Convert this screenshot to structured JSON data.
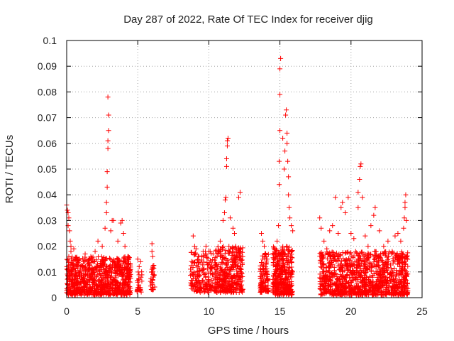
{
  "chart_data": {
    "type": "scatter",
    "title": "Day 287 of 2022, Rate Of TEC Index for receiver djig",
    "xlabel": "GPS time / hours",
    "ylabel": "ROTI / TECUs",
    "xlim": [
      0,
      25
    ],
    "ylim": [
      0,
      0.1
    ],
    "xticks": [
      "0",
      "5",
      "10",
      "15",
      "20",
      "25"
    ],
    "yticks": [
      "0",
      "0.01",
      "0.02",
      "0.03",
      "0.04",
      "0.05",
      "0.06",
      "0.07",
      "0.08",
      "0.09",
      "0.1"
    ],
    "grid": true,
    "marker": "+",
    "color": "#ff0000",
    "series": [
      {
        "points": [
          [
            0.0,
            0.036
          ],
          [
            0.05,
            0.034
          ],
          [
            0.1,
            0.033
          ],
          [
            0.15,
            0.031
          ],
          [
            0.1,
            0.028
          ],
          [
            0.2,
            0.026
          ],
          [
            0.25,
            0.022
          ],
          [
            0.3,
            0.02
          ],
          [
            0.3,
            0.018
          ],
          [
            0.15,
            0.016
          ],
          [
            0.5,
            0.019
          ],
          [
            0.9,
            0.015
          ],
          [
            1.3,
            0.017
          ],
          [
            1.7,
            0.016
          ],
          [
            2.0,
            0.018
          ],
          [
            2.2,
            0.022
          ],
          [
            2.5,
            0.02
          ],
          [
            2.7,
            0.027
          ],
          [
            2.8,
            0.033
          ],
          [
            2.8,
            0.037
          ],
          [
            2.85,
            0.043
          ],
          [
            2.85,
            0.049
          ],
          [
            2.9,
            0.058
          ],
          [
            2.9,
            0.061
          ],
          [
            2.95,
            0.065
          ],
          [
            2.95,
            0.071
          ],
          [
            2.9,
            0.078
          ],
          [
            3.1,
            0.026
          ],
          [
            3.2,
            0.03
          ],
          [
            3.3,
            0.03
          ],
          [
            3.6,
            0.022
          ],
          [
            3.8,
            0.029
          ],
          [
            3.9,
            0.03
          ],
          [
            4.0,
            0.025
          ],
          [
            4.1,
            0.02
          ],
          [
            4.3,
            0.016
          ],
          [
            5.0,
            0.015
          ],
          [
            5.1,
            0.012
          ],
          [
            5.2,
            0.014
          ],
          [
            5.0,
            0.006
          ],
          [
            5.1,
            0.003
          ],
          [
            6.0,
            0.021
          ],
          [
            6.0,
            0.018
          ],
          [
            6.05,
            0.016
          ],
          [
            6.0,
            0.011
          ],
          [
            6.1,
            0.008
          ],
          [
            6.05,
            0.004
          ],
          [
            8.9,
            0.024
          ],
          [
            9.0,
            0.02
          ],
          [
            9.1,
            0.019
          ],
          [
            9.3,
            0.016
          ],
          [
            9.6,
            0.018
          ],
          [
            9.8,
            0.02
          ],
          [
            10.0,
            0.018
          ],
          [
            10.3,
            0.017
          ],
          [
            10.8,
            0.022
          ],
          [
            11.0,
            0.03
          ],
          [
            11.1,
            0.033
          ],
          [
            11.15,
            0.038
          ],
          [
            11.2,
            0.039
          ],
          [
            11.25,
            0.051
          ],
          [
            11.25,
            0.054
          ],
          [
            11.3,
            0.061
          ],
          [
            11.35,
            0.062
          ],
          [
            11.3,
            0.059
          ],
          [
            11.5,
            0.031
          ],
          [
            11.7,
            0.027
          ],
          [
            11.8,
            0.025
          ],
          [
            11.9,
            0.02
          ],
          [
            12.1,
            0.039
          ],
          [
            12.2,
            0.041
          ],
          [
            13.7,
            0.025
          ],
          [
            13.8,
            0.022
          ],
          [
            13.9,
            0.02
          ],
          [
            14.0,
            0.017
          ],
          [
            14.1,
            0.015
          ],
          [
            14.8,
            0.022
          ],
          [
            14.9,
            0.028
          ],
          [
            14.95,
            0.044
          ],
          [
            14.95,
            0.053
          ],
          [
            15.0,
            0.065
          ],
          [
            15.0,
            0.079
          ],
          [
            15.0,
            0.089
          ],
          [
            15.05,
            0.093
          ],
          [
            15.2,
            0.062
          ],
          [
            15.3,
            0.05
          ],
          [
            15.35,
            0.057
          ],
          [
            15.4,
            0.071
          ],
          [
            15.45,
            0.073
          ],
          [
            15.5,
            0.064
          ],
          [
            15.5,
            0.06
          ],
          [
            15.55,
            0.053
          ],
          [
            15.6,
            0.047
          ],
          [
            15.6,
            0.04
          ],
          [
            15.65,
            0.035
          ],
          [
            15.7,
            0.031
          ],
          [
            15.8,
            0.028
          ],
          [
            15.9,
            0.026
          ],
          [
            17.8,
            0.031
          ],
          [
            17.9,
            0.027
          ],
          [
            18.1,
            0.022
          ],
          [
            18.3,
            0.019
          ],
          [
            18.5,
            0.026
          ],
          [
            18.7,
            0.028
          ],
          [
            18.9,
            0.039
          ],
          [
            19.1,
            0.025
          ],
          [
            19.3,
            0.035
          ],
          [
            19.4,
            0.037
          ],
          [
            19.6,
            0.033
          ],
          [
            19.8,
            0.039
          ],
          [
            20.0,
            0.025
          ],
          [
            20.2,
            0.023
          ],
          [
            20.5,
            0.035
          ],
          [
            20.5,
            0.041
          ],
          [
            20.6,
            0.046
          ],
          [
            20.65,
            0.051
          ],
          [
            20.7,
            0.052
          ],
          [
            20.8,
            0.039
          ],
          [
            21.0,
            0.024
          ],
          [
            21.2,
            0.02
          ],
          [
            21.4,
            0.028
          ],
          [
            21.6,
            0.032
          ],
          [
            21.7,
            0.035
          ],
          [
            22.0,
            0.026
          ],
          [
            22.3,
            0.02
          ],
          [
            22.6,
            0.022
          ],
          [
            22.9,
            0.018
          ],
          [
            23.1,
            0.024
          ],
          [
            23.3,
            0.025
          ],
          [
            23.5,
            0.022
          ],
          [
            23.7,
            0.027
          ],
          [
            23.75,
            0.031
          ],
          [
            23.8,
            0.035
          ],
          [
            23.8,
            0.037
          ],
          [
            23.85,
            0.04
          ],
          [
            23.9,
            0.03
          ]
        ]
      }
    ],
    "dense_bands": [
      {
        "x": [
          0.0,
          4.5
        ],
        "y": [
          0.001,
          0.016
        ],
        "count": 900
      },
      {
        "x": [
          4.9,
          5.3
        ],
        "y": [
          0.002,
          0.012
        ],
        "count": 25
      },
      {
        "x": [
          5.9,
          6.2
        ],
        "y": [
          0.003,
          0.014
        ],
        "count": 25
      },
      {
        "x": [
          8.7,
          10.4
        ],
        "y": [
          0.002,
          0.018
        ],
        "count": 180
      },
      {
        "x": [
          10.4,
          12.4
        ],
        "y": [
          0.002,
          0.02
        ],
        "count": 380
      },
      {
        "x": [
          13.6,
          14.2
        ],
        "y": [
          0.002,
          0.018
        ],
        "count": 110
      },
      {
        "x": [
          14.5,
          15.9
        ],
        "y": [
          0.001,
          0.02
        ],
        "count": 360
      },
      {
        "x": [
          17.8,
          24.0
        ],
        "y": [
          0.001,
          0.018
        ],
        "count": 1100
      }
    ]
  }
}
